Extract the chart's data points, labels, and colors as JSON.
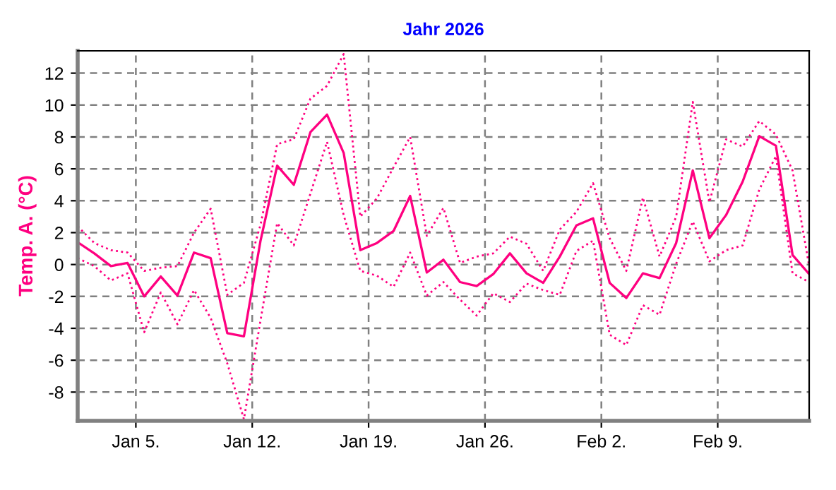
{
  "chart_data": {
    "type": "line",
    "title": "Jahr 2026",
    "ylabel": "Temp. A. (°C)",
    "x": [
      "2026-01-01T12:00",
      "2026-01-02T12:00",
      "2026-01-03T12:00",
      "2026-01-04T12:00",
      "2026-01-05T12:00",
      "2026-01-06T12:00",
      "2026-01-07T12:00",
      "2026-01-08T12:00",
      "2026-01-09T12:00",
      "2026-01-10T12:00",
      "2026-01-11T12:00",
      "2026-01-12T12:00",
      "2026-01-13T12:00",
      "2026-01-14T12:00",
      "2026-01-15T12:00",
      "2026-01-16T12:00",
      "2026-01-17T12:00",
      "2026-01-18T12:00",
      "2026-01-19T12:00",
      "2026-01-20T12:00",
      "2026-01-21T12:00",
      "2026-01-22T12:00",
      "2026-01-23T12:00",
      "2026-01-24T12:00",
      "2026-01-25T12:00",
      "2026-01-26T12:00",
      "2026-01-27T12:00",
      "2026-01-28T12:00",
      "2026-01-29T12:00",
      "2026-01-30T12:00",
      "2026-01-31T12:00",
      "2026-02-01T12:00",
      "2026-02-02T12:00",
      "2026-02-03T12:00",
      "2026-02-04T12:00",
      "2026-02-05T12:00",
      "2026-02-06T12:00",
      "2026-02-07T12:00",
      "2026-02-08T12:00",
      "2026-02-09T12:00",
      "2026-02-10T12:00",
      "2026-02-11T12:00",
      "2026-02-12T12:00",
      "2026-02-13T12:00",
      "2026-02-14T12:00"
    ],
    "series": [
      {
        "color": "#ff0080",
        "line_style": "dotted",
        "values": [
          2.4,
          1.35,
          0.9,
          0.75,
          -0.4,
          -0.2,
          -0.1,
          2.0,
          3.5,
          -1.9,
          -1.15,
          2.5,
          7.55,
          7.85,
          10.4,
          11.2,
          13.2,
          3.0,
          4.15,
          6.1,
          8.0,
          1.8,
          3.55,
          0.1,
          0.5,
          0.7,
          1.75,
          1.3,
          -0.4,
          2.2,
          3.3,
          5.1,
          1.65,
          -0.4,
          4.2,
          0.5,
          3.0,
          10.2,
          3.9,
          7.85,
          7.4,
          9.0,
          8.15,
          5.9,
          -0.1
        ]
      },
      {
        "color": "#ff0080",
        "line_style": "solid",
        "values": [
          1.4,
          0.7,
          -0.1,
          0.1,
          -2.0,
          -0.75,
          -1.95,
          0.75,
          0.4,
          -4.3,
          -4.5,
          1.5,
          6.2,
          5.0,
          8.3,
          9.4,
          7.0,
          0.9,
          1.35,
          2.1,
          4.3,
          -0.5,
          0.3,
          -1.1,
          -1.35,
          -0.6,
          0.7,
          -0.55,
          -1.15,
          0.5,
          2.45,
          2.9,
          -1.15,
          -2.1,
          -0.55,
          -0.85,
          1.35,
          5.9,
          1.65,
          3.1,
          5.2,
          8.05,
          7.45,
          0.6,
          -0.6
        ]
      },
      {
        "color": "#ff0080",
        "line_style": "dotted",
        "values": [
          0.4,
          -0.1,
          -1.0,
          -0.55,
          -4.25,
          -1.75,
          -3.75,
          -1.6,
          -3.35,
          -6.2,
          -9.7,
          -3.5,
          2.6,
          1.2,
          4.45,
          7.7,
          3.1,
          -0.4,
          -0.7,
          -1.4,
          0.75,
          -1.95,
          -1.1,
          -2.2,
          -3.2,
          -1.8,
          -2.35,
          -1.2,
          -1.6,
          -1.9,
          0.85,
          1.5,
          -4.4,
          -5.05,
          -2.55,
          -3.15,
          0.05,
          2.7,
          0.2,
          0.9,
          1.2,
          4.7,
          6.8,
          -0.55,
          -1.1
        ]
      }
    ],
    "xlim": [
      "2026-01-01T12:00",
      "2026-02-14T12:00"
    ],
    "xticks": [
      {
        "value": "2026-01-05",
        "label": "Jan 5."
      },
      {
        "value": "2026-01-12",
        "label": "Jan 12."
      },
      {
        "value": "2026-01-19",
        "label": "Jan 19."
      },
      {
        "value": "2026-01-26",
        "label": "Jan 26."
      },
      {
        "value": "2026-02-02",
        "label": "Feb 2."
      },
      {
        "value": "2026-02-09",
        "label": "Feb 9."
      }
    ],
    "ylim": [
      -9.8,
      13.4
    ],
    "yticks": [
      -8,
      -6,
      -4,
      -2,
      0,
      2,
      4,
      6,
      8,
      10,
      12
    ],
    "grid": true,
    "marker": "none"
  }
}
